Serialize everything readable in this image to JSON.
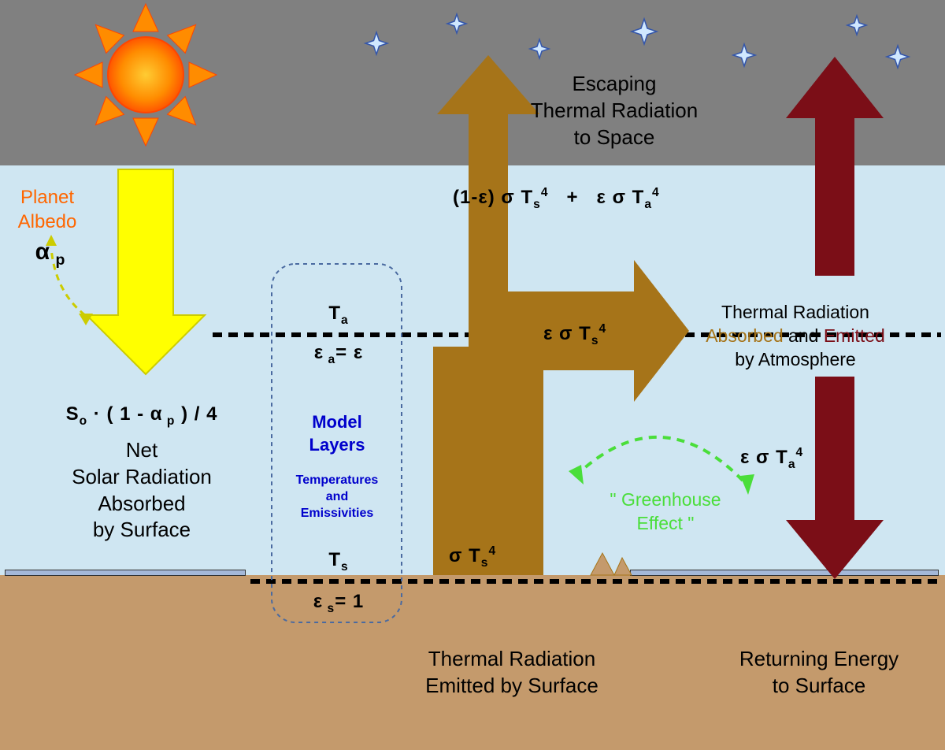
{
  "colors": {
    "space": "#808080",
    "atmosphere": "#cfe6f2",
    "ground": "#c49a6c",
    "surface_water": "#a4b8d8",
    "sun_outer": "#ff8c00",
    "sun_inner": "#ff4500",
    "solar_arrow": "#ffff00",
    "solar_arrow_stroke": "#cccc00",
    "thermal_brown": "#a67419",
    "thermal_dark": "#7b0e17",
    "greenhouse": "#4ade3a",
    "albedo_text": "#ff6600",
    "model_text": "#0000cc",
    "model_box": "#4a6aa0",
    "absorbed_word": "#a67419",
    "emitted_word": "#7b0e17",
    "text": "#000000",
    "star": "#d0e8ff",
    "star_stroke": "#3355aa"
  },
  "labels": {
    "escaping1": "Escaping",
    "escaping2": "Thermal Radiation",
    "escaping3": "to Space",
    "planet_albedo1": "Planet",
    "planet_albedo2": "Albedo",
    "net1": "Net",
    "net2": "Solar Radiation",
    "net3": "Absorbed",
    "net4": "by Surface",
    "model1": "Model",
    "model2": "Layers",
    "model3": "Temperatures",
    "model4": "and",
    "model5": "Emissivities",
    "therm_atm1": "Thermal Radiation",
    "therm_atm2a": "Absorbed",
    "therm_atm2b": " and ",
    "therm_atm2c": "Emitted",
    "therm_atm3": "by Atmosphere",
    "gh1": "\" Greenhouse",
    "gh2": "Effect    \"",
    "emit1": "Thermal Radiation",
    "emit2": "Emitted by Surface",
    "return1": "Returning Energy",
    "return2": "to Surface"
  },
  "formulas": {
    "alpha_p": [
      "α",
      " p"
    ],
    "net_solar": [
      "S",
      "o",
      " · ( 1 - α",
      " p",
      " ) / 4"
    ],
    "Ta": [
      "T",
      "a"
    ],
    "eps_a": [
      "ε",
      " a",
      "= ε"
    ],
    "Ts": [
      "T",
      "s"
    ],
    "eps_s": [
      "ε",
      " s",
      "= 1"
    ],
    "escape1": [
      "(1-ε) σ T",
      "s",
      "4"
    ],
    "escape_plus": "+",
    "escape2": [
      "ε σ T",
      "a",
      "4"
    ],
    "absorb": [
      "ε σ T",
      "s",
      "4"
    ],
    "surface_emit": [
      "σ T",
      "s",
      "4"
    ],
    "return": [
      "ε σ T",
      "a",
      "4"
    ]
  },
  "font": {
    "label": 26,
    "formula": 24,
    "small_label": 20,
    "tiny": 16
  },
  "dashes": {
    "atmo": "12,8",
    "surf": "12,8"
  },
  "stars": [
    [
      478,
      55,
      14
    ],
    [
      580,
      30,
      12
    ],
    [
      685,
      62,
      12
    ],
    [
      818,
      40,
      16
    ],
    [
      945,
      70,
      14
    ],
    [
      1088,
      32,
      12
    ],
    [
      1140,
      72,
      14
    ]
  ]
}
